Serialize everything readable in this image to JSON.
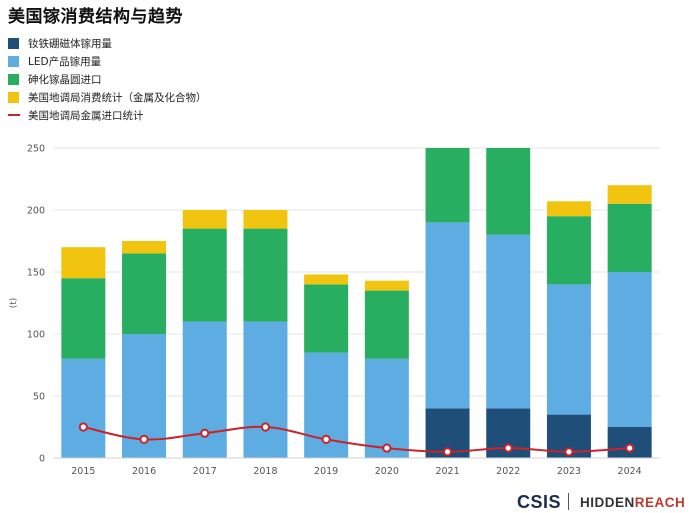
{
  "title": "美国镓消费结构与趋势",
  "colors": {
    "ndfeb": "#1f4e79",
    "led": "#5dade2",
    "gaas": "#27ae60",
    "usgs": "#f1c40f",
    "import_line": "#cc2229"
  },
  "chart_data": {
    "type": "bar",
    "stacked": true,
    "categories": [
      "2015",
      "2016",
      "2017",
      "2018",
      "2019",
      "2020",
      "2021",
      "2022",
      "2023",
      "2024"
    ],
    "series": [
      {
        "key": "ndfeb",
        "name": "钕铁硼磁体镓用量",
        "values": [
          0,
          0,
          0,
          0,
          0,
          0,
          40,
          40,
          35,
          25
        ]
      },
      {
        "key": "led",
        "name": "LED产品镓用量",
        "values": [
          80,
          100,
          110,
          110,
          85,
          80,
          150,
          140,
          105,
          125
        ]
      },
      {
        "key": "gaas",
        "name": "砷化镓晶圆进口",
        "values": [
          65,
          65,
          75,
          75,
          55,
          55,
          60,
          70,
          55,
          55
        ]
      },
      {
        "key": "usgs",
        "name": "美国地调局消费统计（金属及化合物）",
        "values": [
          25,
          10,
          15,
          15,
          8,
          8,
          0,
          0,
          12,
          15
        ]
      }
    ],
    "line_series": {
      "key": "import_line",
      "name": "美国地调局金属进口统计",
      "values": [
        25,
        15,
        20,
        25,
        15,
        8,
        5,
        8,
        5,
        8
      ]
    },
    "ylabel": "(t)",
    "ylim": [
      0,
      250
    ],
    "yticks": [
      0,
      50,
      100,
      150,
      200,
      250
    ]
  },
  "footer": {
    "brand_left": "CSIS",
    "brand_right_a": "HIDDEN",
    "brand_right_b": "REACH"
  }
}
